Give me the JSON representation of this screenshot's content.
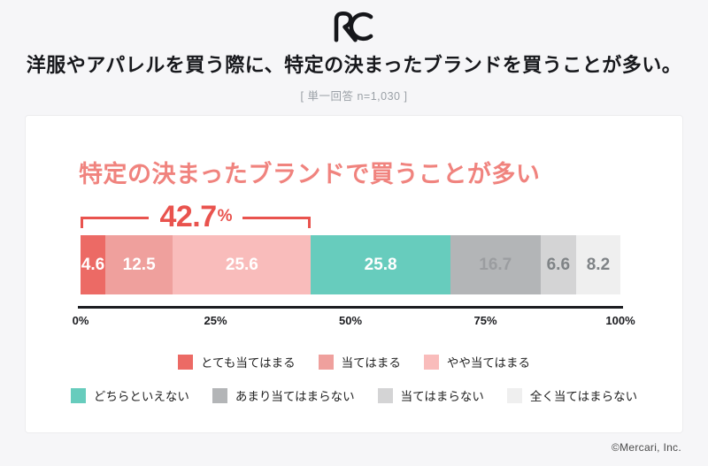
{
  "logo_monogram": "RC",
  "header": {
    "title": "洋服やアパレルを買う際に、特定の決まったブランドを買うことが多い。",
    "subtitle": "[ 単一回答 n=1,030 ]"
  },
  "card": {
    "title": "特定の決まったブランドで買うことが多い",
    "title_color": "#f0837e"
  },
  "chart_data": {
    "type": "bar",
    "stacked": true,
    "orientation": "horizontal",
    "title": "特定の決まったブランドで買うことが多い",
    "categories": [
      "とても当てはまる",
      "当てはまる",
      "やや当てはまる",
      "どちらといえない",
      "あまり当てはまらない",
      "当てはまらない",
      "全く当てはまらない"
    ],
    "values": [
      4.6,
      12.5,
      25.6,
      25.8,
      16.7,
      6.6,
      8.2
    ],
    "colors": [
      "#ec6a65",
      "#efa09d",
      "#f9bcbb",
      "#67ccbd",
      "#b3b5b7",
      "#d4d4d5",
      "#efefef"
    ],
    "value_label_colors": [
      "#ffffff",
      "#ffffff",
      "#ffffff",
      "#ffffff",
      "#9b9da0",
      "#7f8386",
      "#7f8386"
    ],
    "x_ticks": [
      "0%",
      "25%",
      "50%",
      "75%",
      "100%"
    ],
    "xlim": [
      0,
      100
    ],
    "grid": false,
    "legend_position": "bottom",
    "highlight": {
      "label": "42.7",
      "percent_sign": "%",
      "span_percent": 42.7,
      "color": "#e9534e",
      "covers_first_n": 3
    }
  },
  "legend": {
    "rows": [
      [
        {
          "label": "とても当てはまる",
          "color": "#ec6a65"
        },
        {
          "label": "当てはまる",
          "color": "#efa09d"
        },
        {
          "label": "やや当てはまる",
          "color": "#f9bcbb"
        }
      ],
      [
        {
          "label": "どちらといえない",
          "color": "#67ccbd"
        },
        {
          "label": "あまり当てはまらない",
          "color": "#b3b5b7"
        },
        {
          "label": "当てはまらない",
          "color": "#d4d4d5"
        },
        {
          "label": "全く当てはまらない",
          "color": "#efefef"
        }
      ]
    ]
  },
  "footer": {
    "copyright": "©Mercari, Inc."
  }
}
